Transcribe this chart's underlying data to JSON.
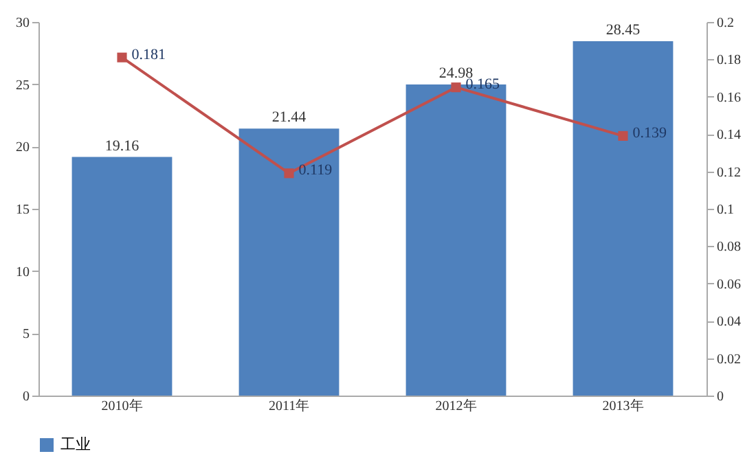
{
  "chart_data": {
    "type": "bar",
    "categories": [
      "2010年",
      "2011年",
      "2012年",
      "2013年"
    ],
    "series": [
      {
        "name": "工业",
        "color": "#4f81bd",
        "values": [
          19.16,
          21.44,
          24.98,
          28.45
        ]
      },
      {
        "type": "line",
        "axis": "y2",
        "color": "#c0504d",
        "marker": "square",
        "values": [
          0.181,
          0.119,
          0.165,
          0.139
        ]
      }
    ],
    "ylim": [
      0,
      30
    ],
    "yticks": [
      0,
      5,
      10,
      15,
      20,
      25,
      30
    ],
    "y2lim": [
      0,
      0.2
    ],
    "y2ticks": [
      0,
      0.02,
      0.04,
      0.06,
      0.08,
      0.1,
      0.12,
      0.14,
      0.16,
      0.18,
      0.2
    ],
    "data_labels": true,
    "legend": "bottom",
    "grid": false
  }
}
